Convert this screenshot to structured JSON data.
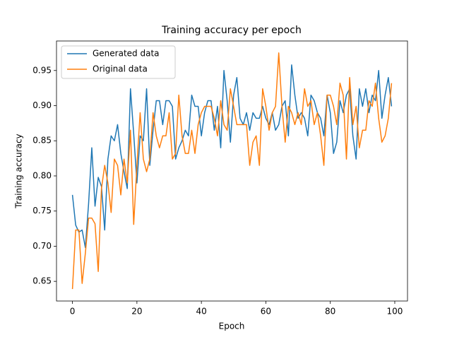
{
  "chart_data": {
    "type": "line",
    "title": "Training accuracy per epoch",
    "x_label": "Epoch",
    "y_label": "Training accuracy",
    "x": [
      0,
      1,
      2,
      3,
      4,
      5,
      6,
      7,
      8,
      9,
      10,
      11,
      12,
      13,
      14,
      15,
      16,
      17,
      18,
      19,
      20,
      21,
      22,
      23,
      24,
      25,
      26,
      27,
      28,
      29,
      30,
      31,
      32,
      33,
      34,
      35,
      36,
      37,
      38,
      39,
      40,
      41,
      42,
      43,
      44,
      45,
      46,
      47,
      48,
      49,
      50,
      51,
      52,
      53,
      54,
      55,
      56,
      57,
      58,
      59,
      60,
      61,
      62,
      63,
      64,
      65,
      66,
      67,
      68,
      69,
      70,
      71,
      72,
      73,
      74,
      75,
      76,
      77,
      78,
      79,
      80,
      81,
      82,
      83,
      84,
      85,
      86,
      87,
      88,
      89,
      90,
      91,
      92,
      93,
      94,
      95,
      96,
      97,
      98,
      99
    ],
    "series": [
      {
        "name": "Generated data",
        "color": "#1f77b4",
        "values": [
          0.773,
          0.73,
          0.72,
          0.723,
          0.698,
          0.76,
          0.84,
          0.757,
          0.798,
          0.785,
          0.723,
          0.824,
          0.857,
          0.85,
          0.873,
          0.832,
          0.806,
          0.782,
          0.924,
          0.86,
          0.79,
          0.857,
          0.85,
          0.924,
          0.815,
          0.865,
          0.907,
          0.907,
          0.873,
          0.907,
          0.907,
          0.899,
          0.824,
          0.84,
          0.85,
          0.865,
          0.857,
          0.915,
          0.899,
          0.899,
          0.857,
          0.89,
          0.907,
          0.907,
          0.865,
          0.899,
          0.84,
          0.95,
          0.907,
          0.848,
          0.915,
          0.94,
          0.882,
          0.873,
          0.89,
          0.865,
          0.89,
          0.882,
          0.882,
          0.899,
          0.882,
          0.873,
          0.89,
          0.865,
          0.873,
          0.899,
          0.907,
          0.857,
          0.958,
          0.915,
          0.882,
          0.89,
          0.882,
          0.857,
          0.915,
          0.907,
          0.89,
          0.882,
          0.857,
          0.915,
          0.89,
          0.832,
          0.848,
          0.907,
          0.89,
          0.915,
          0.924,
          0.857,
          0.824,
          0.924,
          0.899,
          0.924,
          0.89,
          0.915,
          0.907,
          0.95,
          0.882,
          0.915,
          0.94,
          0.899
        ]
      },
      {
        "name": "Original data",
        "color": "#ff7f0e",
        "values": [
          0.639,
          0.723,
          0.723,
          0.647,
          0.69,
          0.74,
          0.74,
          0.732,
          0.664,
          0.782,
          0.815,
          0.79,
          0.748,
          0.824,
          0.815,
          0.773,
          0.824,
          0.79,
          0.865,
          0.731,
          0.815,
          0.89,
          0.824,
          0.806,
          0.824,
          0.89,
          0.857,
          0.84,
          0.857,
          0.857,
          0.89,
          0.824,
          0.832,
          0.915,
          0.857,
          0.832,
          0.832,
          0.865,
          0.832,
          0.873,
          0.89,
          0.899,
          0.899,
          0.899,
          0.882,
          0.857,
          0.907,
          0.873,
          0.865,
          0.924,
          0.899,
          0.873,
          0.873,
          0.873,
          0.873,
          0.815,
          0.848,
          0.857,
          0.815,
          0.924,
          0.899,
          0.865,
          0.89,
          0.899,
          0.975,
          0.899,
          0.848,
          0.899,
          0.89,
          0.873,
          0.89,
          0.873,
          0.924,
          0.899,
          0.907,
          0.873,
          0.89,
          0.857,
          0.815,
          0.915,
          0.915,
          0.899,
          0.873,
          0.932,
          0.915,
          0.824,
          0.94,
          0.873,
          0.899,
          0.84,
          0.865,
          0.865,
          0.907,
          0.899,
          0.932,
          0.882,
          0.848,
          0.857,
          0.882,
          0.932
        ]
      }
    ],
    "xlim": [
      -4.95,
      103.95
    ],
    "xticks": [
      0,
      20,
      40,
      60,
      80,
      100
    ],
    "ylim": [
      0.622,
      0.992
    ],
    "yticks": [
      0.65,
      {
        "value": 0.7,
        "label": "0.70"
      },
      0.75,
      {
        "value": 0.8,
        "label": "0.80"
      },
      0.85,
      {
        "value": 0.9,
        "label": "0.90"
      },
      0.95
    ],
    "grid": false,
    "legend_position": "upper-left"
  }
}
